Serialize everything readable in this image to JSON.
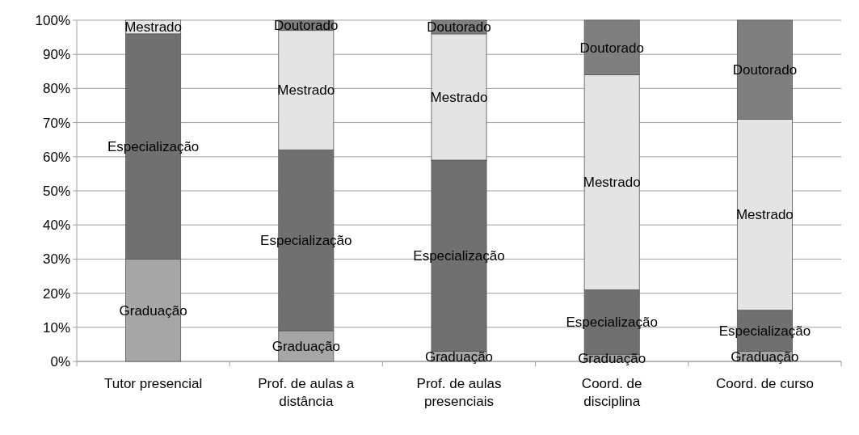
{
  "chart_data": {
    "type": "bar",
    "stacked": true,
    "categories": [
      "Tutor presencial",
      "Prof. de aulas a distância",
      "Prof. de aulas presenciais",
      "Coord. de disciplina",
      "Coord. de curso"
    ],
    "series": [
      {
        "name": "Graduação",
        "color": "#a6a6a6",
        "values": [
          30,
          9,
          3,
          2,
          3
        ]
      },
      {
        "name": "Especialização",
        "color": "#707070",
        "values": [
          66,
          53,
          56,
          19,
          12
        ]
      },
      {
        "name": "Mestrado",
        "color": "#e4e4e4",
        "values": [
          4,
          35,
          37,
          63,
          56
        ]
      },
      {
        "name": "Doutorado",
        "color": "#7f7f7f",
        "values": [
          null,
          3,
          4,
          16,
          29
        ]
      }
    ],
    "ylim": [
      0,
      100
    ],
    "yticks": [
      {
        "value": 0,
        "label": "0%"
      },
      {
        "value": 10,
        "label": "10%"
      },
      {
        "value": 20,
        "label": "20%"
      },
      {
        "value": 30,
        "label": "30%"
      },
      {
        "value": 40,
        "label": "40%"
      },
      {
        "value": 50,
        "label": "50%"
      },
      {
        "value": 60,
        "label": "60%"
      },
      {
        "value": 70,
        "label": "70%"
      },
      {
        "value": 80,
        "label": "80%"
      },
      {
        "value": 90,
        "label": "90%"
      },
      {
        "value": 100,
        "label": "100%"
      }
    ],
    "grid": "y"
  }
}
